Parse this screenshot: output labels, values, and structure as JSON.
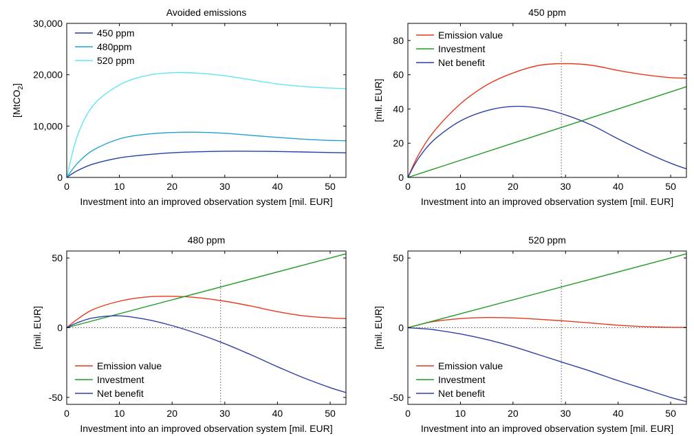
{
  "chart_data": [
    {
      "type": "line",
      "title": "Avoided emissions",
      "xlabel": "Investment into an improved observation system [mil. EUR]",
      "ylabel": "[MtCO2]",
      "ylabel_main": "[MtCO",
      "ylabel_sub": "2",
      "ylabel_close": "]",
      "xlim": [
        0,
        53
      ],
      "ylim": [
        0,
        30000
      ],
      "xticks": [
        0,
        10,
        20,
        30,
        40,
        50
      ],
      "xtick_labels": [
        "0",
        "10",
        "20",
        "30",
        "40",
        "50"
      ],
      "yticks": [
        0,
        10000,
        20000,
        30000
      ],
      "ytick_labels": [
        "0",
        "10,000",
        "20,000",
        "30,000"
      ],
      "grid": false,
      "legend_position": "top-left",
      "series": [
        {
          "name": "450 ppm",
          "color": "#1f3fa8",
          "x": [
            0,
            2,
            5,
            10,
            15,
            20,
            25,
            30,
            35,
            40,
            45,
            50,
            53
          ],
          "y": [
            0,
            1300,
            2600,
            3800,
            4400,
            4800,
            5000,
            5100,
            5100,
            5050,
            4950,
            4850,
            4800
          ]
        },
        {
          "name": "480ppm",
          "color": "#1fa0d2",
          "x": [
            0,
            2,
            5,
            10,
            15,
            20,
            25,
            30,
            35,
            40,
            45,
            50,
            53
          ],
          "y": [
            0,
            2700,
            5300,
            7500,
            8400,
            8750,
            8800,
            8600,
            8200,
            7800,
            7450,
            7200,
            7150
          ]
        },
        {
          "name": "520 ppm",
          "color": "#5fe6f5",
          "x": [
            0,
            2,
            5,
            10,
            15,
            20,
            25,
            30,
            35,
            40,
            45,
            50,
            53
          ],
          "y": [
            0,
            8000,
            14000,
            18000,
            19800,
            20400,
            20300,
            19800,
            19000,
            18200,
            17700,
            17400,
            17300
          ]
        }
      ]
    },
    {
      "type": "line",
      "title": "450 ppm",
      "xlabel": "Investment into an improved observation system [mil. EUR]",
      "ylabel": "[mil. EUR]",
      "xlim": [
        0,
        53
      ],
      "ylim": [
        0,
        90
      ],
      "xticks": [
        0,
        10,
        20,
        30,
        40,
        50
      ],
      "xtick_labels": [
        "0",
        "10",
        "20",
        "30",
        "40",
        "50"
      ],
      "yticks": [
        0,
        20,
        40,
        60,
        80
      ],
      "ytick_labels": [
        "0",
        "20",
        "40",
        "60",
        "80"
      ],
      "vline_x": 29.2,
      "grid": false,
      "legend_position": "top-left",
      "series": [
        {
          "name": "Emission value",
          "color": "#e8371c",
          "x": [
            0,
            2,
            5,
            10,
            15,
            20,
            25,
            30,
            35,
            40,
            45,
            50,
            53
          ],
          "y": [
            0,
            13,
            27,
            43,
            54,
            61,
            65.5,
            66.5,
            65.5,
            62.5,
            60,
            58.3,
            58
          ]
        },
        {
          "name": "Investment",
          "color": "#1e9a24",
          "x": [
            0,
            53
          ],
          "y": [
            0,
            53
          ]
        },
        {
          "name": "Net benefit",
          "color": "#2c3fa6",
          "x": [
            0,
            2,
            5,
            10,
            15,
            20,
            25,
            30,
            35,
            40,
            45,
            50,
            53
          ],
          "y": [
            0,
            11,
            22,
            33,
            39,
            41.5,
            40.5,
            36.5,
            30.5,
            22.5,
            15,
            8.3,
            5
          ]
        }
      ]
    },
    {
      "type": "line",
      "title": "480 ppm",
      "xlabel": "Investment into an improved observation system [mil. EUR]",
      "ylabel": "[mil. EUR]",
      "xlim": [
        0,
        53
      ],
      "ylim": [
        -55,
        55
      ],
      "xticks": [
        0,
        10,
        20,
        30,
        40,
        50
      ],
      "xtick_labels": [
        "0",
        "10",
        "20",
        "30",
        "40",
        "50"
      ],
      "yticks": [
        -50,
        0,
        50
      ],
      "ytick_labels": [
        "-50",
        "0",
        "50"
      ],
      "vline_x": 29.2,
      "hline_y": 0,
      "grid": false,
      "legend_position": "bottom-left",
      "series": [
        {
          "name": "Emission value",
          "color": "#e8371c",
          "x": [
            0,
            2,
            5,
            10,
            15,
            20,
            25,
            30,
            35,
            40,
            45,
            50,
            53
          ],
          "y": [
            0,
            6,
            13,
            19,
            22,
            22.5,
            21.5,
            19,
            15.5,
            11.5,
            8.5,
            7,
            6.5
          ]
        },
        {
          "name": "Investment",
          "color": "#1e9a24",
          "x": [
            0,
            53
          ],
          "y": [
            0,
            53
          ]
        },
        {
          "name": "Net benefit",
          "color": "#2c3fa6",
          "x": [
            0,
            2,
            5,
            10,
            15,
            20,
            25,
            30,
            35,
            40,
            45,
            50,
            53
          ],
          "y": [
            0,
            3.5,
            7,
            8.5,
            6,
            1.5,
            -4.5,
            -11.5,
            -19.5,
            -28,
            -36,
            -43,
            -46.5
          ]
        }
      ]
    },
    {
      "type": "line",
      "title": "520 ppm",
      "xlabel": "Investment into an improved observation system [mil. EUR]",
      "ylabel": "[mil. EUR]",
      "xlim": [
        0,
        53
      ],
      "ylim": [
        -55,
        55
      ],
      "xticks": [
        0,
        10,
        20,
        30,
        40,
        50
      ],
      "xtick_labels": [
        "0",
        "10",
        "20",
        "30",
        "40",
        "50"
      ],
      "yticks": [
        -50,
        0,
        50
      ],
      "ytick_labels": [
        "-50",
        "0",
        "50"
      ],
      "vline_x": 29.2,
      "hline_y": 0,
      "grid": false,
      "legend_position": "bottom-left",
      "series": [
        {
          "name": "Emission value",
          "color": "#e8371c",
          "x": [
            0,
            2,
            5,
            10,
            15,
            20,
            25,
            30,
            35,
            40,
            45,
            50,
            53
          ],
          "y": [
            0,
            2,
            4.5,
            6.5,
            7.3,
            7,
            6,
            4.8,
            3.3,
            1.8,
            0.8,
            0.3,
            0.2
          ]
        },
        {
          "name": "Investment",
          "color": "#1e9a24",
          "x": [
            0,
            53
          ],
          "y": [
            0,
            53
          ]
        },
        {
          "name": "Net benefit",
          "color": "#2c3fa6",
          "x": [
            0,
            2,
            5,
            10,
            15,
            20,
            25,
            30,
            35,
            40,
            45,
            50,
            53
          ],
          "y": [
            0,
            -0.5,
            -1.5,
            -4.5,
            -8.5,
            -13.5,
            -19.5,
            -25.5,
            -31.5,
            -38,
            -44,
            -50,
            -53
          ]
        }
      ]
    }
  ]
}
